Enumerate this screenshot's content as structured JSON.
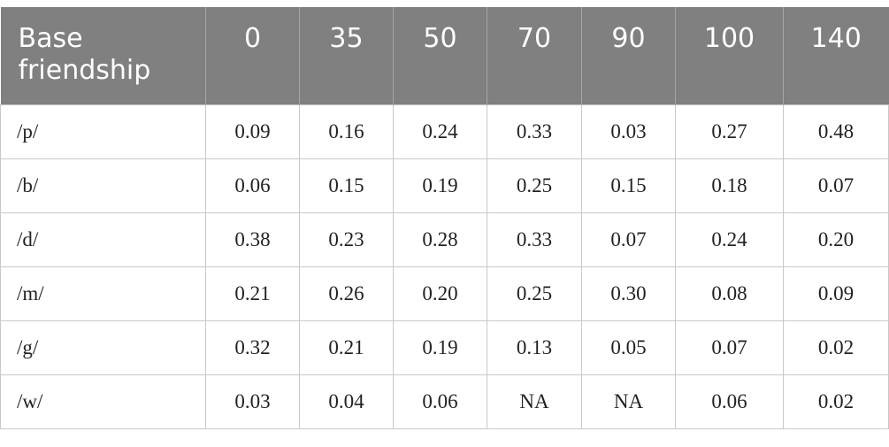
{
  "table": {
    "header": [
      "Base friendship",
      "0",
      "35",
      "50",
      "70",
      "90",
      "100",
      "140"
    ],
    "rows": [
      [
        "/p/",
        "0.09",
        "0.16",
        "0.24",
        "0.33",
        "0.03",
        "0.27",
        "0.48"
      ],
      [
        "/b/",
        "0.06",
        "0.15",
        "0.19",
        "0.25",
        "0.15",
        "0.18",
        "0.07"
      ],
      [
        "/d/",
        "0.38",
        "0.23",
        "0.28",
        "0.33",
        "0.07",
        "0.24",
        "0.20"
      ],
      [
        "/m/",
        "0.21",
        "0.26",
        "0.20",
        "0.25",
        "0.30",
        "0.08",
        "0.09"
      ],
      [
        "/g/",
        "0.32",
        "0.21",
        "0.19",
        "0.13",
        "0.05",
        "0.07",
        "0.02"
      ],
      [
        "/w/",
        "0.03",
        "0.04",
        "0.06",
        "NA",
        "NA",
        "0.06",
        "0.02"
      ]
    ]
  }
}
